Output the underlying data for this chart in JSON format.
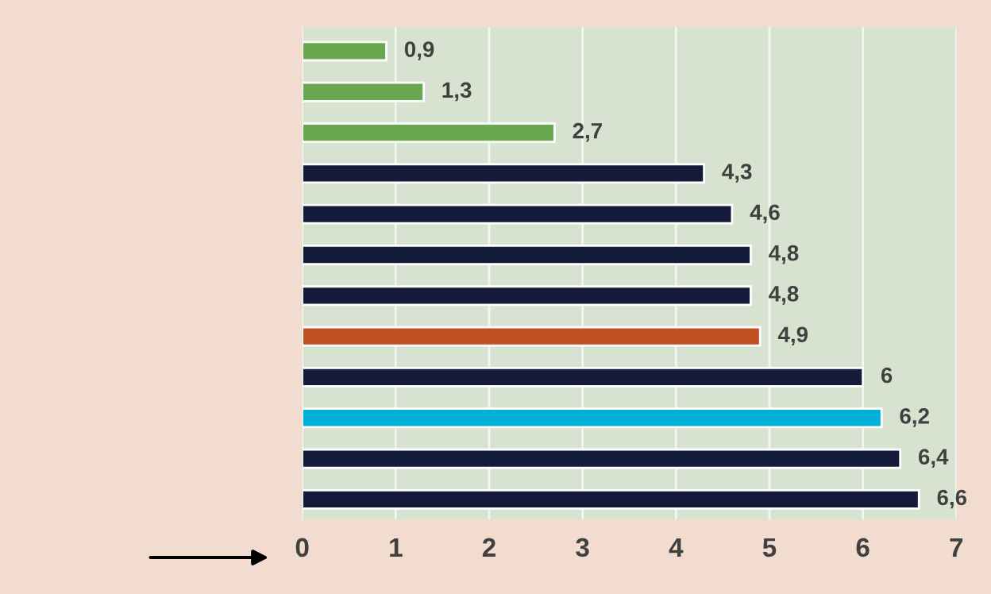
{
  "chart_data": {
    "type": "bar",
    "orientation": "horizontal",
    "categories": [
      null,
      null,
      null,
      null,
      null,
      null,
      null,
      null,
      null,
      null,
      null,
      null
    ],
    "values": [
      0.9,
      1.3,
      2.7,
      4.3,
      4.6,
      4.8,
      4.8,
      4.9,
      6,
      6.2,
      6.4,
      6.6
    ],
    "colors": [
      "#6aa84f",
      "#6aa84f",
      "#6aa84f",
      "#141a3a",
      "#141a3a",
      "#141a3a",
      "#141a3a",
      "#c0501f",
      "#141a3a",
      "#00b0d8",
      "#141a3a",
      "#141a3a"
    ],
    "value_labels": [
      "0,9",
      "1,3",
      "2,7",
      "4,3",
      "4,6",
      "4,8",
      "4,8",
      "4,9",
      "6",
      "6,2",
      "6,4",
      "6,6"
    ],
    "xlim": [
      0,
      7
    ],
    "xticks": [
      0,
      1,
      2,
      3,
      4,
      5,
      6,
      7
    ],
    "grid": "x",
    "tick_labels": "x"
  }
}
